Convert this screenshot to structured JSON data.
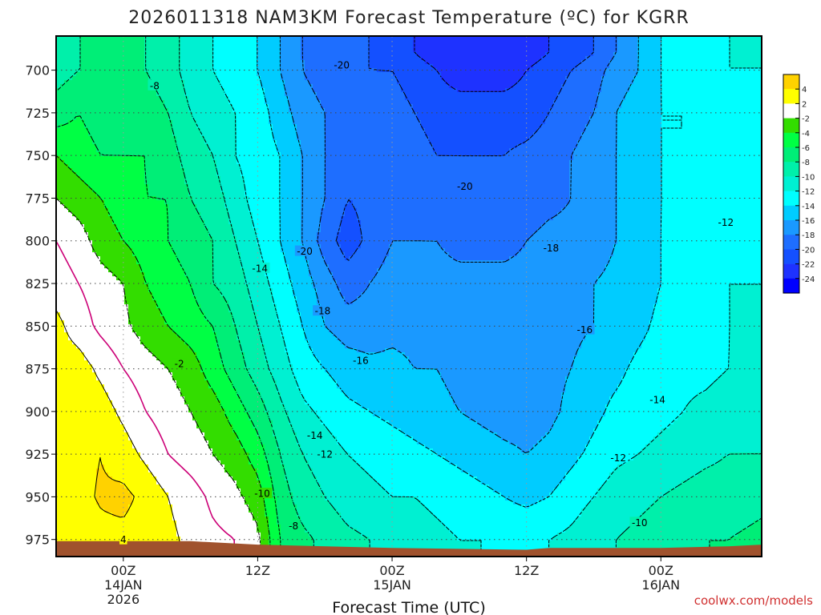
{
  "chart_data": {
    "type": "heatmap",
    "title": "2026011318 NAM3KM Forecast Temperature (ºC) for KGRR",
    "xlabel": "Forecast Time (UTC)",
    "ylabel": "",
    "y_scale": "pressure (hPa, inverted)",
    "ylim": [
      985,
      680
    ],
    "y_ticks": [
      "700",
      "725",
      "750",
      "775",
      "800",
      "825",
      "850",
      "875",
      "900",
      "925",
      "950",
      "975"
    ],
    "x_ticks": [
      {
        "label": "00Z",
        "sub": "14JAN",
        "sub2": "2026"
      },
      {
        "label": "12Z",
        "sub": "",
        "sub2": ""
      },
      {
        "label": "00Z",
        "sub": "15JAN",
        "sub2": ""
      },
      {
        "label": "12Z",
        "sub": "",
        "sub2": ""
      },
      {
        "label": "00Z",
        "sub": "16JAN",
        "sub2": ""
      }
    ],
    "xlim_hours": [
      -6,
      57
    ],
    "grid": true,
    "colorbar": {
      "labels": [
        "4",
        "2",
        "-2",
        "-4",
        "-6",
        "-8",
        "-10",
        "-12",
        "-14",
        "-16",
        "-18",
        "-20",
        "-22",
        "-24"
      ],
      "bands": [
        {
          "lo": 4,
          "hi": 6,
          "color": "#ffd200"
        },
        {
          "lo": 2,
          "hi": 4,
          "color": "#ffff00"
        },
        {
          "lo": -2,
          "hi": 2,
          "color": "#ffffff"
        },
        {
          "lo": -4,
          "hi": -2,
          "color": "#33dd00"
        },
        {
          "lo": -6,
          "hi": -4,
          "color": "#00ff44"
        },
        {
          "lo": -8,
          "hi": -6,
          "color": "#00ee77"
        },
        {
          "lo": -10,
          "hi": -8,
          "color": "#00f0aa"
        },
        {
          "lo": -12,
          "hi": -10,
          "color": "#00f0d2"
        },
        {
          "lo": -14,
          "hi": -12,
          "color": "#00ffff"
        },
        {
          "lo": -16,
          "hi": -14,
          "color": "#00ccff"
        },
        {
          "lo": -18,
          "hi": -16,
          "color": "#1a99ff"
        },
        {
          "lo": -20,
          "hi": -18,
          "color": "#1e6eff"
        },
        {
          "lo": -22,
          "hi": -20,
          "color": "#1450ff"
        },
        {
          "lo": -24,
          "hi": -22,
          "color": "#1e32ff"
        },
        {
          "lo": -26,
          "hi": -24,
          "color": "#0000ff"
        }
      ]
    },
    "contour_labels": [
      {
        "text": "-20",
        "hour": 19.5,
        "p": 697
      },
      {
        "text": "-8",
        "hour": 2.8,
        "p": 709
      },
      {
        "text": "-20",
        "hour": 30.5,
        "p": 768
      },
      {
        "text": "-20",
        "hour": 16.2,
        "p": 806
      },
      {
        "text": "-18",
        "hour": 38.2,
        "p": 804
      },
      {
        "text": "-14",
        "hour": 12.2,
        "p": 816
      },
      {
        "text": "-12",
        "hour": 53.8,
        "p": 789
      },
      {
        "text": "-18",
        "hour": 17.8,
        "p": 841
      },
      {
        "text": "-16",
        "hour": 41.2,
        "p": 852
      },
      {
        "text": "-16",
        "hour": 21.2,
        "p": 870
      },
      {
        "text": "-2",
        "hour": 5.0,
        "p": 872
      },
      {
        "text": "-14",
        "hour": 47.7,
        "p": 893
      },
      {
        "text": "-14",
        "hour": 17.1,
        "p": 914
      },
      {
        "text": "-12",
        "hour": 18.0,
        "p": 925
      },
      {
        "text": "-12",
        "hour": 44.2,
        "p": 927
      },
      {
        "text": "-10",
        "hour": 12.4,
        "p": 948
      },
      {
        "text": "-8",
        "hour": 15.2,
        "p": 967
      },
      {
        "text": "-10",
        "hour": 46.1,
        "p": 965
      },
      {
        "text": "4",
        "hour": 0.0,
        "p": 975
      }
    ],
    "temperature_field": {
      "hours": [
        -6,
        -4,
        -2,
        0,
        2,
        4,
        6,
        8,
        10,
        12,
        14,
        16,
        18,
        20,
        22,
        24,
        26,
        28,
        30,
        32,
        34,
        36,
        38,
        40,
        42,
        44,
        46,
        48,
        50,
        52,
        54,
        57
      ],
      "pressures": [
        690,
        700,
        725,
        750,
        775,
        800,
        825,
        850,
        875,
        900,
        925,
        950,
        975,
        985
      ],
      "values": [
        [
          -9,
          -8,
          -8,
          -7,
          -8,
          -9,
          -11,
          -12,
          -13,
          -14,
          -16,
          -18,
          -20,
          -20,
          -20,
          -21,
          -22,
          -23,
          -24,
          -24,
          -24,
          -23,
          -22,
          -21,
          -20,
          -18,
          -16,
          -14,
          -13,
          -13,
          -12,
          -12
        ],
        [
          -9,
          -8,
          -8,
          -7,
          -8,
          -9,
          -11,
          -12,
          -13,
          -14,
          -16,
          -18,
          -19,
          -20,
          -20,
          -20,
          -21,
          -22,
          -23,
          -23,
          -23,
          -22,
          -21,
          -20,
          -19,
          -17,
          -16,
          -14,
          -13,
          -13,
          -12,
          -12
        ],
        [
          -7,
          -6,
          -7,
          -7,
          -7,
          -8,
          -10,
          -11,
          -12,
          -13,
          -15,
          -17,
          -18,
          -19,
          -19,
          -19,
          -20,
          -21,
          -21,
          -21,
          -21,
          -21,
          -20,
          -19,
          -18,
          -16,
          -15,
          -14,
          -14,
          -13,
          -12,
          -13
        ],
        [
          -4,
          -5,
          -6,
          -6,
          -6,
          -7,
          -9,
          -10,
          -12,
          -13,
          -14,
          -16,
          -18,
          -19,
          -19,
          -19,
          -19,
          -20,
          -20,
          -20,
          -20,
          -19.5,
          -19,
          -18,
          -17,
          -16,
          -15,
          -14,
          -14,
          -13,
          -12,
          -13
        ],
        [
          -2,
          -3,
          -4,
          -5,
          -6,
          -6,
          -8,
          -9,
          -11,
          -13,
          -14,
          -16,
          -18,
          -20,
          -19.5,
          -19,
          -19,
          -19,
          -19.5,
          -19.5,
          -19.5,
          -19,
          -18.5,
          -18,
          -17,
          -16,
          -15,
          -14,
          -14,
          -13,
          -12,
          -13
        ],
        [
          0,
          -1,
          -3,
          -4,
          -5,
          -6,
          -7,
          -8,
          -10,
          -12,
          -14,
          -16,
          -19,
          -21,
          -19.5,
          -18,
          -18,
          -18,
          -18.5,
          -18.5,
          -18.5,
          -18,
          -17.5,
          -17.5,
          -17,
          -16,
          -15,
          -14,
          -13,
          -13,
          -12,
          -13
        ],
        [
          1,
          0,
          -1,
          -2,
          -4,
          -5,
          -6,
          -8,
          -9,
          -11,
          -13,
          -15,
          -17,
          -19,
          -18,
          -17,
          -17,
          -17.5,
          -17.5,
          -17.5,
          -17.5,
          -17.5,
          -17,
          -17,
          -16,
          -15.5,
          -15,
          -14,
          -13,
          -13,
          -12,
          -12
        ],
        [
          2.6,
          1,
          -0.5,
          -1.5,
          -3,
          -4,
          -5,
          -6,
          -8,
          -10,
          -12,
          -14,
          -16,
          -17,
          -17,
          -16.5,
          -16.5,
          -17,
          -17,
          -17.5,
          -17.5,
          -17.5,
          -17,
          -16.5,
          -16,
          -15.5,
          -14.5,
          -13.5,
          -13,
          -13,
          -12,
          -12
        ],
        [
          3,
          3,
          1.5,
          0,
          -1,
          -2,
          -3,
          -5,
          -7,
          -9,
          -11,
          -13,
          -14,
          -15,
          -15.5,
          -15.5,
          -16,
          -16,
          -16.5,
          -17,
          -17,
          -17,
          -16.5,
          -16,
          -15,
          -14.5,
          -13.5,
          -13,
          -12.5,
          -12.5,
          -12,
          -11.5
        ],
        [
          2.5,
          3.5,
          3,
          1.5,
          0,
          -1,
          -2,
          -3,
          -5,
          -7,
          -9.5,
          -11.5,
          -12.5,
          -13.5,
          -14,
          -14.5,
          -15,
          -15.5,
          -16,
          -16.5,
          -17,
          -17,
          -16.5,
          -15.5,
          -14.5,
          -13.5,
          -13,
          -12.5,
          -12,
          -11.5,
          -11,
          -11
        ],
        [
          3,
          3.5,
          4,
          3,
          1.5,
          0,
          -1,
          -2,
          -3,
          -5,
          -8,
          -10,
          -11,
          -12,
          -12.5,
          -13,
          -13.5,
          -14,
          -14.5,
          -15,
          -15.5,
          -16,
          -15.5,
          -14.5,
          -13.5,
          -12.5,
          -12,
          -11.5,
          -11,
          -10.5,
          -10,
          -10
        ],
        [
          3,
          3.5,
          4.2,
          4.5,
          3.5,
          2,
          1,
          -0.5,
          -1.5,
          -3,
          -7,
          -9,
          -10,
          -11,
          -11.5,
          -12,
          -12,
          -12.5,
          -13,
          -13.5,
          -14,
          -14.5,
          -14,
          -13,
          -12,
          -11,
          -10.5,
          -10,
          -9.5,
          -9,
          -9,
          -8.5
        ],
        [
          2.5,
          3,
          3.5,
          3.5,
          3,
          2.5,
          1.5,
          0.5,
          0,
          -1.5,
          -6,
          -7.5,
          -8.5,
          -9.5,
          -10,
          -10.5,
          -11,
          -11.5,
          -12,
          -12,
          -12.5,
          -12.5,
          -12,
          -11.5,
          -10.5,
          -10,
          -9.5,
          -9,
          -8.5,
          -8,
          -8,
          -7.5
        ],
        [
          2.5,
          3,
          3.5,
          3.5,
          3,
          2.5,
          1.5,
          0.5,
          0,
          -1.5,
          -6,
          -7.5,
          -8.5,
          -9.5,
          -10,
          -10.5,
          -11,
          -11.5,
          -12,
          -12,
          -12.5,
          -12.5,
          -12,
          -11.5,
          -10.5,
          -10,
          -9.5,
          -9,
          -8.5,
          -8,
          -8,
          -7.5
        ]
      ]
    },
    "terrain_surface_pressure": [
      {
        "hour": -6,
        "p": 976
      },
      {
        "hour": 6,
        "p": 976
      },
      {
        "hour": 12,
        "p": 978
      },
      {
        "hour": 24,
        "p": 980
      },
      {
        "hour": 36,
        "p": 981
      },
      {
        "hour": 38,
        "p": 980
      },
      {
        "hour": 48,
        "p": 980
      },
      {
        "hour": 54,
        "p": 979
      },
      {
        "hour": 57,
        "p": 978
      }
    ],
    "terrain_color": "#a0522d",
    "freezing_line_color": "#cc0077",
    "frame_color": "#000000"
  },
  "credit": "coolwx.com/models"
}
